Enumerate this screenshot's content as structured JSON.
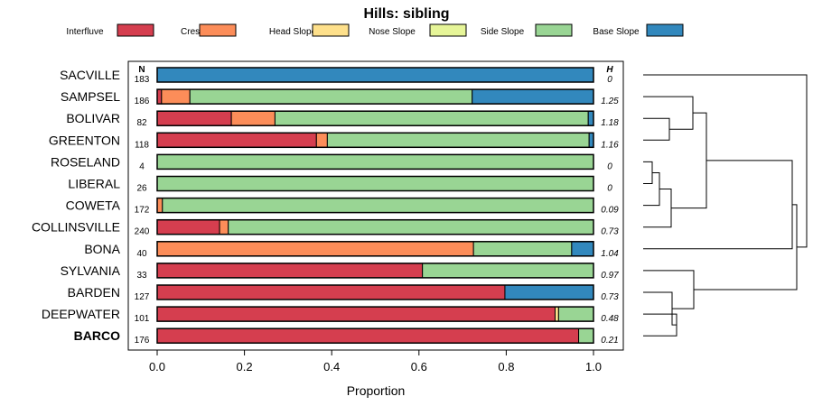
{
  "chart_data": {
    "type": "bar",
    "orientation": "horizontal",
    "stacked": true,
    "title": "Hills: sibling",
    "xlabel": "Proportion",
    "xlim": [
      0,
      1
    ],
    "xticks": [
      0,
      0.2,
      0.4,
      0.6,
      0.8,
      1
    ],
    "xtick_labels": [
      "0.0",
      "0.2",
      "0.4",
      "0.6",
      "0.8",
      "1.0"
    ],
    "n_header": "N",
    "h_header": "H",
    "legend": [
      {
        "name": "Interfluve",
        "color": "#d53e4f"
      },
      {
        "name": "Crest",
        "color": "#fc8d59"
      },
      {
        "name": "Head Slope",
        "color": "#fee08b"
      },
      {
        "name": "Nose Slope",
        "color": "#e6f598"
      },
      {
        "name": "Side Slope",
        "color": "#99d594"
      },
      {
        "name": "Base Slope",
        "color": "#3288bd"
      }
    ],
    "categories": [
      "SACVILLE",
      "SAMPSEL",
      "BOLIVAR",
      "GREENTON",
      "ROSELAND",
      "LIBERAL",
      "COWETA",
      "COLLINSVILLE",
      "BONA",
      "SYLVANIA",
      "BARDEN",
      "DEEPWATER",
      "BARCO"
    ],
    "highlighted": "BARCO",
    "n": [
      "183",
      "186",
      "82",
      "118",
      "4",
      "26",
      "172",
      "240",
      "40",
      "33",
      "127",
      "101",
      "176"
    ],
    "h": [
      "0",
      "1.25",
      "1.18",
      "1.16",
      "0",
      "0",
      "0.09",
      "0.73",
      "1.04",
      "0.97",
      "0.73",
      "0.48",
      "0.21"
    ],
    "series": [
      {
        "name": "Interfluve",
        "values": [
          0,
          0.01,
          0.17,
          0.365,
          0,
          0,
          0,
          0.143,
          0,
          0.608,
          0.797,
          0.912,
          0.966
        ]
      },
      {
        "name": "Crest",
        "values": [
          0,
          0.065,
          0.1,
          0.025,
          0,
          0,
          0.012,
          0.02,
          0.725,
          0,
          0,
          0,
          0
        ]
      },
      {
        "name": "Head Slope",
        "values": [
          0,
          0,
          0,
          0,
          0,
          0,
          0,
          0,
          0,
          0,
          0,
          0.008,
          0
        ]
      },
      {
        "name": "Nose Slope",
        "values": [
          0,
          0,
          0,
          0,
          0,
          0,
          0,
          0,
          0,
          0,
          0,
          0,
          0
        ]
      },
      {
        "name": "Side Slope",
        "values": [
          0,
          0.647,
          0.718,
          0.6,
          1,
          1,
          0.988,
          0.837,
          0.225,
          0.392,
          0,
          0.08,
          0.034
        ]
      },
      {
        "name": "Base Slope",
        "values": [
          1,
          0.278,
          0.012,
          0.01,
          0,
          0,
          0,
          0,
          0.05,
          0,
          0.203,
          0,
          0
        ]
      }
    ]
  }
}
